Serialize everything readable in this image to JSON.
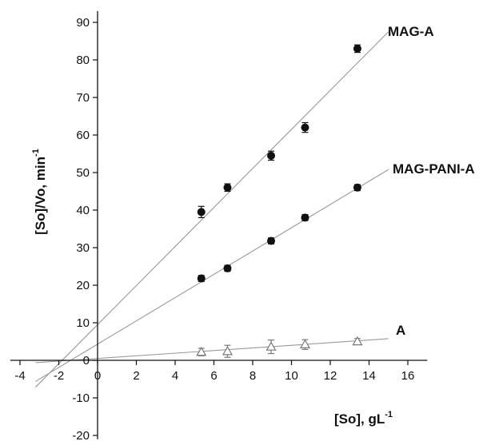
{
  "chart_data": {
    "type": "scatter",
    "title": "",
    "xlabel": "[So], gL",
    "xlabel_superscript": "-1",
    "ylabel": "[So]/Vo, min",
    "ylabel_superscript": "-1",
    "xlim": [
      -4.5,
      17
    ],
    "ylim": [
      -21,
      93
    ],
    "xticks": [
      -4,
      -2,
      0,
      2,
      4,
      6,
      8,
      10,
      12,
      14,
      16
    ],
    "yticks": [
      -20,
      -10,
      0,
      10,
      20,
      30,
      40,
      50,
      60,
      70,
      80,
      90
    ],
    "grid": false,
    "legend": "none",
    "series": [
      {
        "name": "MAG-A",
        "marker": "filled-circle",
        "x": [
          5.35,
          6.7,
          8.95,
          10.7,
          13.4
        ],
        "y": [
          39.5,
          46,
          54.5,
          62,
          83
        ],
        "yerr": [
          1.5,
          1.0,
          1.2,
          1.3,
          1.0
        ],
        "fit": {
          "x_start": -3.2,
          "x_end": 15.0,
          "slope": 5.2,
          "intercept": 9.5
        }
      },
      {
        "name": "MAG-PANI-A",
        "marker": "filled-circle",
        "x": [
          5.35,
          6.7,
          8.95,
          10.7,
          13.4
        ],
        "y": [
          21.8,
          24.5,
          31.8,
          38,
          46
        ],
        "yerr": [
          0.8,
          0.8,
          0.8,
          0.8,
          0.8
        ],
        "fit": {
          "x_start": -3.2,
          "x_end": 15.0,
          "slope": 3.1,
          "intercept": 4.3
        }
      },
      {
        "name": "A",
        "marker": "open-triangle",
        "x": [
          5.35,
          6.7,
          8.95,
          10.7,
          13.4
        ],
        "y": [
          2.2,
          2.4,
          3.6,
          4.2,
          5.0
        ],
        "yerr": [
          1.0,
          1.6,
          1.8,
          1.3,
          0.8
        ],
        "fit": {
          "x_start": -3.2,
          "x_end": 15.0,
          "slope": 0.35,
          "intercept": 0.5
        }
      }
    ]
  },
  "colors": {
    "axis": "#111111",
    "fit_line": "#9a9a9a",
    "marker_fill": "#111111",
    "open_marker_stroke": "#777777"
  }
}
